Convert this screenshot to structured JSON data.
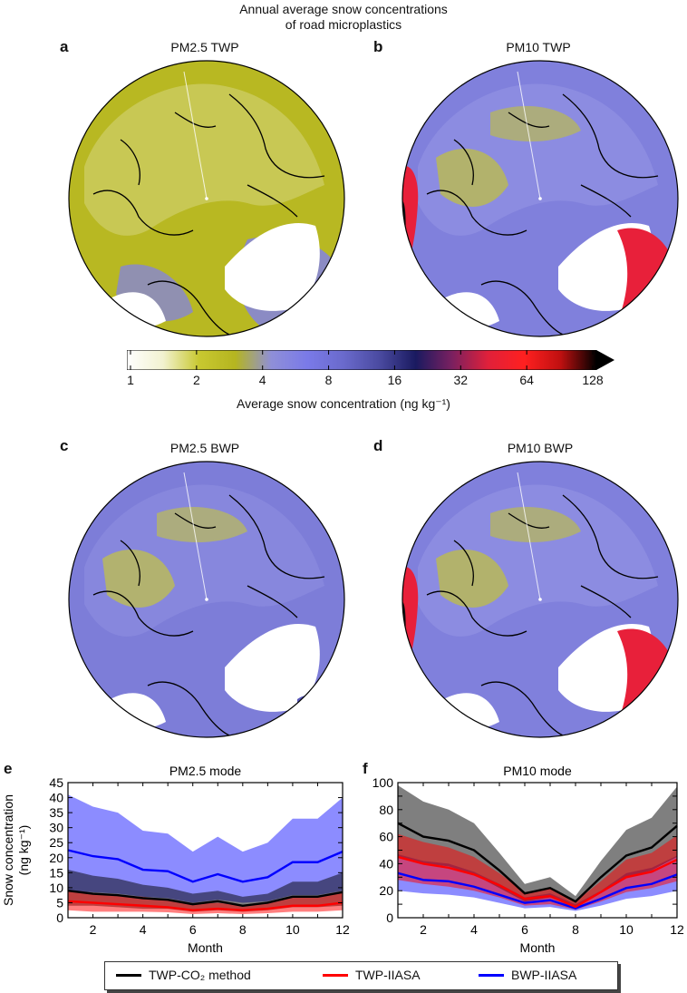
{
  "figure": {
    "suptitle_line1": "Annual average snow concentrations",
    "suptitle_line2": "of road microplastics"
  },
  "maps": [
    {
      "letter": "a",
      "title": "PM2.5 TWP",
      "palette": "yellow-dominant"
    },
    {
      "letter": "b",
      "title": "PM10 TWP",
      "palette": "blue-red"
    },
    {
      "letter": "c",
      "title": "PM2.5 BWP",
      "palette": "blue-dominant"
    },
    {
      "letter": "d",
      "title": "PM10 BWP",
      "palette": "blue-red"
    }
  ],
  "colorbar": {
    "ticks": [
      "1",
      "2",
      "4",
      "8",
      "16",
      "32",
      "64",
      "128"
    ],
    "label": "Average snow concentration (ng kg⁻¹)",
    "colors": [
      "#ffffff",
      "#f2f2d0",
      "#c8c830",
      "#b5b520",
      "#8f8fd8",
      "#7a7ae8",
      "#6a6acc",
      "#4a4aa0",
      "#1a1a60",
      "#7a2060",
      "#e0203a",
      "#ff2020",
      "#c01010",
      "#000000"
    ],
    "scale": "log2"
  },
  "chart_data": [
    {
      "type": "area",
      "panel": "e",
      "title": "PM2.5 mode",
      "xlabel": "Month",
      "ylabel_line1": "Snow concentration",
      "ylabel_line2": "(ng kg⁻¹)",
      "x": [
        1,
        2,
        3,
        4,
        5,
        6,
        7,
        8,
        9,
        10,
        11,
        12
      ],
      "xticks": [
        2,
        4,
        6,
        8,
        10,
        12
      ],
      "yticks": [
        0,
        5,
        10,
        15,
        20,
        25,
        30,
        35,
        40,
        45
      ],
      "xlim": [
        1,
        12
      ],
      "ylim": [
        0,
        45
      ],
      "series": [
        {
          "name": "TWP-CO₂ method",
          "color": "#000000",
          "mean": [
            9,
            8,
            7.5,
            6.5,
            6,
            4.5,
            5.5,
            4,
            5,
            7,
            7,
            8.5
          ],
          "lower": [
            4,
            4,
            3.5,
            3,
            3,
            2,
            2.5,
            2,
            2.5,
            3.5,
            3.5,
            4
          ],
          "upper": [
            16,
            14,
            13,
            11,
            10,
            8,
            9,
            7,
            8,
            12,
            12,
            15
          ]
        },
        {
          "name": "TWP-IIASA",
          "color": "#ff0000",
          "mean": [
            5.5,
            5,
            4.5,
            4,
            3.5,
            2.5,
            3,
            2.5,
            3,
            4,
            4,
            5
          ],
          "lower": [
            2.5,
            2,
            2,
            2,
            1.8,
            1.2,
            1.5,
            1.2,
            1.5,
            2,
            2,
            2.5
          ],
          "upper": [
            9,
            8,
            7.5,
            7,
            6,
            4.5,
            5,
            4,
            5,
            7,
            7,
            8.5
          ]
        },
        {
          "name": "BWP-IIASA",
          "color": "#0000ff",
          "mean": [
            22.5,
            20.5,
            19.5,
            16,
            15.5,
            12,
            14.5,
            12,
            13.5,
            18.5,
            18.5,
            22
          ],
          "lower": [
            9,
            8.5,
            8,
            7,
            6.5,
            5,
            6,
            5,
            5.5,
            7.5,
            7.5,
            9
          ],
          "upper": [
            41,
            37,
            35,
            29,
            28,
            22,
            27,
            22,
            25,
            33,
            33,
            40
          ]
        }
      ]
    },
    {
      "type": "area",
      "panel": "f",
      "title": "PM10 mode",
      "xlabel": "Month",
      "x": [
        1,
        2,
        3,
        4,
        5,
        6,
        7,
        8,
        9,
        10,
        11,
        12
      ],
      "xticks": [
        2,
        4,
        6,
        8,
        10,
        12
      ],
      "yticks": [
        0,
        10,
        20,
        30,
        40,
        50,
        60,
        70,
        80,
        90,
        100
      ],
      "ytick_labels": [
        0,
        20,
        40,
        60,
        80,
        100
      ],
      "xlim": [
        1,
        12
      ],
      "ylim": [
        0,
        100
      ],
      "series": [
        {
          "name": "TWP-CO₂ method",
          "color": "#000000",
          "mean": [
            70,
            60,
            57,
            50,
            35,
            18,
            22,
            12,
            30,
            46,
            52,
            68
          ],
          "lower": [
            45,
            40,
            38,
            32,
            22,
            12,
            15,
            8,
            20,
            30,
            35,
            45
          ],
          "upper": [
            98,
            86,
            80,
            70,
            48,
            25,
            30,
            16,
            42,
            65,
            74,
            97
          ]
        },
        {
          "name": "TWP-IIASA",
          "color": "#ff0000",
          "mean": [
            45,
            40,
            37,
            32,
            24,
            14,
            16,
            8,
            19,
            30,
            34,
            43
          ],
          "lower": [
            28,
            25,
            23,
            20,
            15,
            9,
            10,
            6,
            12,
            19,
            22,
            27
          ],
          "upper": [
            62,
            56,
            52,
            45,
            33,
            19,
            22,
            12,
            27,
            43,
            48,
            61
          ]
        },
        {
          "name": "BWP-IIASA",
          "color": "#0000ff",
          "mean": [
            33,
            28,
            27,
            23,
            17,
            11,
            13,
            7,
            14,
            22,
            25,
            32
          ],
          "lower": [
            20,
            18,
            17,
            15,
            11,
            7,
            8,
            5,
            9,
            14,
            16,
            20
          ],
          "upper": [
            47,
            42,
            40,
            34,
            25,
            15,
            18,
            10,
            20,
            33,
            37,
            46
          ]
        }
      ]
    }
  ],
  "legend": {
    "items": [
      {
        "label": "TWP-CO₂ method",
        "color": "#000000"
      },
      {
        "label": "TWP-IIASA",
        "color": "#ff0000"
      },
      {
        "label": "BWP-IIASA",
        "color": "#0000ff"
      }
    ]
  },
  "panel_labels": {
    "e": "e",
    "f": "f"
  }
}
